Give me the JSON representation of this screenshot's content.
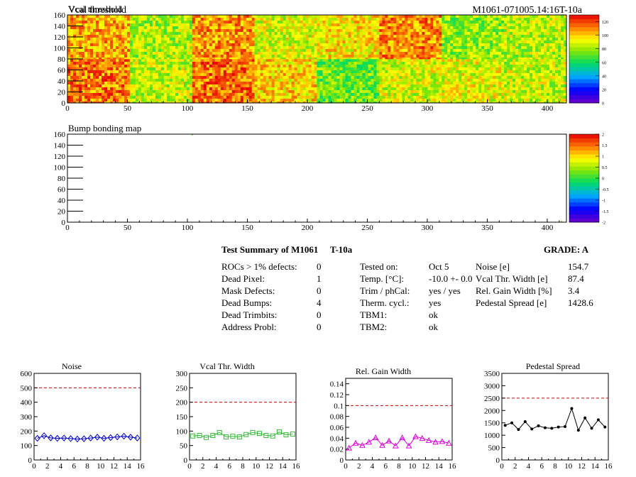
{
  "header": {
    "top_left_title": "Vcal threshold",
    "top_right_title": "M1061-071005.14:16T-10a"
  },
  "summary": {
    "title_module": "Test Summary of M1061",
    "title_temp": "T-10a",
    "grade": "GRADE:  A",
    "col1": [
      {
        "label": "ROCs > 1% defects:",
        "value": "0"
      },
      {
        "label": "Dead Pixel:",
        "value": "1"
      },
      {
        "label": "Mask Defects:",
        "value": "0"
      },
      {
        "label": "Dead Bumps:",
        "value": "4"
      },
      {
        "label": "Dead Trimbits:",
        "value": "0"
      },
      {
        "label": "Address Probl:",
        "value": "0"
      }
    ],
    "col2": [
      {
        "label": "Tested on:",
        "value": "Oct 5"
      },
      {
        "label": "Temp. [°C]:",
        "value": "-10.0 +- 0.0"
      },
      {
        "label": "Trim / phCal:",
        "value": "yes / yes"
      },
      {
        "label": "Therm. cycl.:",
        "value": "yes"
      },
      {
        "label": "TBM1:",
        "value": "ok"
      },
      {
        "label": "TBM2:",
        "value": "ok"
      }
    ],
    "col3": [
      {
        "label": "Noise [e]",
        "value": "154.7"
      },
      {
        "label": "Vcal Thr. Width [e]",
        "value": "87.4"
      },
      {
        "label": "Rel. Gain Width [%]",
        "value": "3.4"
      },
      {
        "label": "Pedestal Spread [e]",
        "value": "1428.6"
      }
    ]
  },
  "chart_data": [
    {
      "type": "heatmap",
      "title": "Vcal threshold",
      "xlim": [
        0,
        416
      ],
      "ylim": [
        0,
        160
      ],
      "xticks": [
        0,
        50,
        100,
        150,
        200,
        250,
        300,
        350,
        400
      ],
      "yticks": [
        0,
        20,
        40,
        60,
        80,
        100,
        120,
        140,
        160
      ],
      "colorbar": {
        "range": [
          0,
          130
        ],
        "ticks": [
          0,
          20,
          40,
          60,
          80,
          100,
          120
        ]
      },
      "roc_mean_values": {
        "top_row": [
          105,
          82,
          108,
          88,
          95,
          110,
          78,
          84
        ],
        "bottom_row": [
          112,
          85,
          114,
          98,
          72,
          88,
          90,
          86
        ]
      }
    },
    {
      "type": "heatmap",
      "title": "Bump bonding map",
      "xlim": [
        0,
        416
      ],
      "ylim": [
        0,
        160
      ],
      "xticks": [
        0,
        50,
        100,
        150,
        200,
        250,
        300,
        350,
        400
      ],
      "yticks": [
        0,
        20,
        40,
        60,
        80,
        100,
        120,
        140,
        160
      ],
      "colorbar": {
        "range": [
          -2,
          2
        ],
        "ticks": [
          -2,
          -1.5,
          -1,
          -0.5,
          0,
          0.5,
          1,
          1.5,
          2
        ]
      },
      "points": [
        {
          "x": 104,
          "y": 159,
          "value": 0.3
        },
        {
          "x": 412,
          "y": 1,
          "value": 0.3
        }
      ]
    },
    {
      "type": "line",
      "title": "Noise",
      "xlim": [
        0,
        16
      ],
      "ylim": [
        0,
        600
      ],
      "xticks": [
        0,
        2,
        4,
        6,
        8,
        10,
        12,
        14,
        16
      ],
      "yticks": [
        0,
        100,
        200,
        300,
        400,
        500,
        600
      ],
      "threshold": 500,
      "color": "#0000cc",
      "marker": "diamond",
      "x": [
        0.5,
        1.5,
        2.5,
        3.5,
        4.5,
        5.5,
        6.5,
        7.5,
        8.5,
        9.5,
        10.5,
        11.5,
        12.5,
        13.5,
        14.5,
        15.5
      ],
      "values": [
        150,
        168,
        153,
        150,
        152,
        148,
        145,
        147,
        152,
        158,
        150,
        155,
        160,
        165,
        158,
        152
      ]
    },
    {
      "type": "line",
      "title": "Vcal Thr. Width",
      "xlim": [
        0,
        16
      ],
      "ylim": [
        0,
        300
      ],
      "xticks": [
        0,
        2,
        4,
        6,
        8,
        10,
        12,
        14,
        16
      ],
      "yticks": [
        0,
        50,
        100,
        150,
        200,
        250,
        300
      ],
      "threshold": 200,
      "color": "#33bb33",
      "marker": "square",
      "x": [
        0.5,
        1.5,
        2.5,
        3.5,
        4.5,
        5.5,
        6.5,
        7.5,
        8.5,
        9.5,
        10.5,
        11.5,
        12.5,
        13.5,
        14.5,
        15.5
      ],
      "values": [
        83,
        85,
        78,
        85,
        95,
        80,
        82,
        80,
        88,
        95,
        92,
        85,
        83,
        97,
        87,
        90
      ]
    },
    {
      "type": "line",
      "title": "Rel. Gain Width",
      "xlim": [
        0,
        16
      ],
      "ylim": [
        0,
        0.15
      ],
      "xticks": [
        0,
        2,
        4,
        6,
        8,
        10,
        12,
        14,
        16
      ],
      "yticks": [
        0,
        0.02,
        0.04,
        0.06,
        0.08,
        0.1,
        0.12,
        0.14
      ],
      "threshold": 0.1,
      "color": "#dd00dd",
      "marker": "triangle",
      "x": [
        0.5,
        1.5,
        2.5,
        3.5,
        4.5,
        5.5,
        6.5,
        7.5,
        8.5,
        9.5,
        10.5,
        11.5,
        12.5,
        13.5,
        14.5,
        15.5
      ],
      "values": [
        0.022,
        0.031,
        0.027,
        0.033,
        0.041,
        0.027,
        0.035,
        0.026,
        0.041,
        0.026,
        0.043,
        0.04,
        0.036,
        0.033,
        0.034,
        0.031
      ]
    },
    {
      "type": "line",
      "title": "Pedestal Spread",
      "xlim": [
        0,
        16
      ],
      "ylim": [
        0,
        3500
      ],
      "xticks": [
        0,
        2,
        4,
        6,
        8,
        10,
        12,
        14,
        16
      ],
      "yticks": [
        0,
        500,
        1000,
        1500,
        2000,
        2500,
        3000,
        3500
      ],
      "threshold": 2500,
      "color": "#000000",
      "marker": "dot",
      "x": [
        0.5,
        1.5,
        2.5,
        3.5,
        4.5,
        5.5,
        6.5,
        7.5,
        8.5,
        9.5,
        10.5,
        11.5,
        12.5,
        13.5,
        14.5,
        15.5
      ],
      "values": [
        1400,
        1500,
        1230,
        1550,
        1250,
        1380,
        1300,
        1280,
        1330,
        1350,
        2080,
        1200,
        1700,
        1280,
        1620,
        1330
      ]
    }
  ]
}
